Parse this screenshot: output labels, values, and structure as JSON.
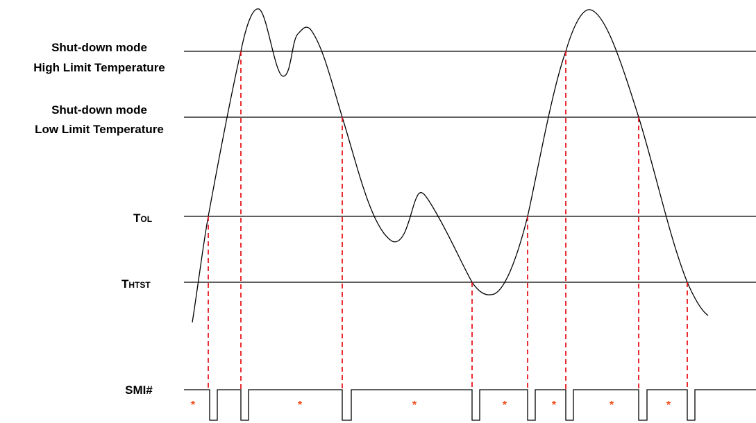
{
  "levels": [
    {
      "lines": [
        "Shut-down mode",
        "High Limit Temperature"
      ]
    },
    {
      "lines": [
        "Shut-down mode",
        "Low Limit Temperature"
      ]
    },
    {
      "symbol": "T",
      "subscript": "OL"
    },
    {
      "symbol": "T",
      "subscript": "HTST"
    }
  ],
  "signal": {
    "label": "SMI#",
    "markers": [
      "*",
      "*",
      "*",
      "*",
      "*",
      "*",
      "*"
    ]
  }
}
